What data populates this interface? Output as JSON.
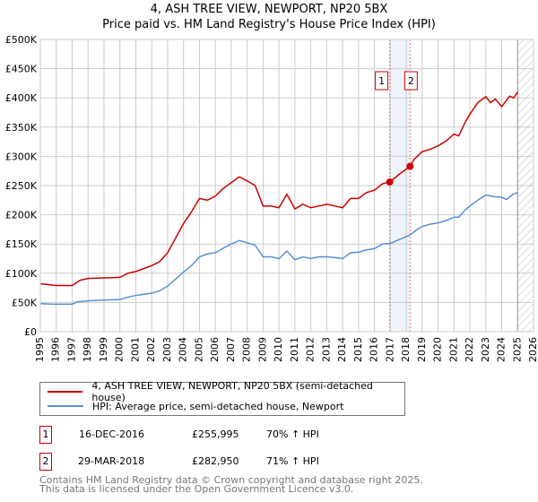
{
  "chart_data": {
    "type": "line",
    "title": "4, ASH TREE VIEW, NEWPORT, NP20 5BX",
    "subtitle": "Price paid vs. HM Land Registry's House Price Index (HPI)",
    "xlim": [
      1995,
      2026
    ],
    "ylim": [
      0,
      500000
    ],
    "x_ticks": [
      "1995",
      "1996",
      "1997",
      "1998",
      "1999",
      "2000",
      "2001",
      "2002",
      "2003",
      "2004",
      "2005",
      "2006",
      "2007",
      "2008",
      "2009",
      "2010",
      "2011",
      "2012",
      "2013",
      "2014",
      "2015",
      "2016",
      "2017",
      "2018",
      "2019",
      "2020",
      "2021",
      "2022",
      "2023",
      "2024",
      "2025",
      "2026"
    ],
    "y_ticks": [
      {
        "v": 0,
        "l": "£0"
      },
      {
        "v": 50000,
        "l": "£50K"
      },
      {
        "v": 100000,
        "l": "£100K"
      },
      {
        "v": 150000,
        "l": "£150K"
      },
      {
        "v": 200000,
        "l": "£200K"
      },
      {
        "v": 250000,
        "l": "£250K"
      },
      {
        "v": 300000,
        "l": "£300K"
      },
      {
        "v": 350000,
        "l": "£350K"
      },
      {
        "v": 400000,
        "l": "£400K"
      },
      {
        "v": 450000,
        "l": "£450K"
      },
      {
        "v": 500000,
        "l": "£500K"
      }
    ],
    "grid": true,
    "series": [
      {
        "name": "4, ASH TREE VIEW, NEWPORT, NP20 5BX (semi-detached house)",
        "color": "#cc0000",
        "points": [
          [
            1995,
            82
          ],
          [
            1996,
            79
          ],
          [
            1997,
            79
          ],
          [
            1997.5,
            88
          ],
          [
            1998,
            91
          ],
          [
            1999,
            92
          ],
          [
            2000,
            93
          ],
          [
            2000.5,
            100
          ],
          [
            2001,
            103
          ],
          [
            2002,
            113
          ],
          [
            2002.5,
            120
          ],
          [
            2003,
            135
          ],
          [
            2003.5,
            160
          ],
          [
            2004,
            185
          ],
          [
            2004.5,
            205
          ],
          [
            2005,
            228
          ],
          [
            2005.5,
            225
          ],
          [
            2006,
            232
          ],
          [
            2006.5,
            245
          ],
          [
            2007,
            255
          ],
          [
            2007.5,
            265
          ],
          [
            2008,
            258
          ],
          [
            2008.5,
            250
          ],
          [
            2009,
            215
          ],
          [
            2009.5,
            215
          ],
          [
            2010,
            212
          ],
          [
            2010.5,
            235
          ],
          [
            2011,
            210
          ],
          [
            2011.5,
            218
          ],
          [
            2012,
            212
          ],
          [
            2012.5,
            215
          ],
          [
            2013,
            218
          ],
          [
            2013.5,
            215
          ],
          [
            2014,
            212
          ],
          [
            2014.5,
            228
          ],
          [
            2015,
            228
          ],
          [
            2015.5,
            238
          ],
          [
            2016,
            242
          ],
          [
            2016.5,
            253
          ],
          [
            2016.96,
            256
          ],
          [
            2017.5,
            268
          ],
          [
            2018.24,
            283
          ],
          [
            2018.5,
            295
          ],
          [
            2019,
            308
          ],
          [
            2019.5,
            312
          ],
          [
            2020,
            318
          ],
          [
            2020.5,
            326
          ],
          [
            2021,
            338
          ],
          [
            2021.3,
            335
          ],
          [
            2021.7,
            358
          ],
          [
            2022,
            372
          ],
          [
            2022.5,
            392
          ],
          [
            2023,
            402
          ],
          [
            2023.3,
            392
          ],
          [
            2023.6,
            398
          ],
          [
            2024,
            385
          ],
          [
            2024.5,
            403
          ],
          [
            2024.75,
            400
          ],
          [
            2025,
            410
          ]
        ]
      },
      {
        "name": "HPI: Average price, semi-detached house, Newport",
        "color": "#5b8fd4",
        "points": [
          [
            1995,
            48
          ],
          [
            1996,
            47
          ],
          [
            1997,
            47
          ],
          [
            1997.3,
            51
          ],
          [
            1998,
            53
          ],
          [
            1999,
            54
          ],
          [
            2000,
            55
          ],
          [
            2000.5,
            59
          ],
          [
            2001,
            62
          ],
          [
            2002,
            66
          ],
          [
            2002.5,
            70
          ],
          [
            2003,
            78
          ],
          [
            2003.5,
            90
          ],
          [
            2004,
            102
          ],
          [
            2004.5,
            113
          ],
          [
            2005,
            128
          ],
          [
            2005.5,
            133
          ],
          [
            2006,
            135
          ],
          [
            2006.5,
            143
          ],
          [
            2007,
            150
          ],
          [
            2007.5,
            156
          ],
          [
            2008,
            152
          ],
          [
            2008.5,
            148
          ],
          [
            2009,
            128
          ],
          [
            2009.5,
            128
          ],
          [
            2010,
            125
          ],
          [
            2010.5,
            138
          ],
          [
            2011,
            123
          ],
          [
            2011.5,
            128
          ],
          [
            2012,
            125
          ],
          [
            2012.5,
            128
          ],
          [
            2013,
            128
          ],
          [
            2013.5,
            127
          ],
          [
            2014,
            125
          ],
          [
            2014.5,
            135
          ],
          [
            2015,
            136
          ],
          [
            2015.5,
            140
          ],
          [
            2016,
            142
          ],
          [
            2016.5,
            150
          ],
          [
            2017,
            151
          ],
          [
            2017.5,
            157
          ],
          [
            2018.2,
            165
          ],
          [
            2018.7,
            175
          ],
          [
            2019,
            180
          ],
          [
            2019.5,
            184
          ],
          [
            2020,
            186
          ],
          [
            2020.5,
            190
          ],
          [
            2021,
            196
          ],
          [
            2021.3,
            196
          ],
          [
            2021.7,
            208
          ],
          [
            2022,
            215
          ],
          [
            2022.5,
            225
          ],
          [
            2023,
            234
          ],
          [
            2023.5,
            231
          ],
          [
            2024,
            230
          ],
          [
            2024.3,
            226
          ],
          [
            2024.7,
            235
          ],
          [
            2025,
            238
          ]
        ]
      }
    ],
    "sales": [
      {
        "label": "1",
        "x": 2016.96,
        "y": 255995
      },
      {
        "label": "2",
        "x": 2018.24,
        "y": 282950
      }
    ],
    "forecast_from": 2025.0
  },
  "transactions": [
    {
      "num": "1",
      "date": "16-DEC-2016",
      "price": "£255,995",
      "hpi": "70% ↑ HPI"
    },
    {
      "num": "2",
      "date": "29-MAR-2018",
      "price": "£282,950",
      "hpi": "71% ↑ HPI"
    }
  ],
  "footer": {
    "line1": "Contains HM Land Registry data © Crown copyright and database right 2025.",
    "line2": "This data is licensed under the Open Government Licence v3.0."
  }
}
